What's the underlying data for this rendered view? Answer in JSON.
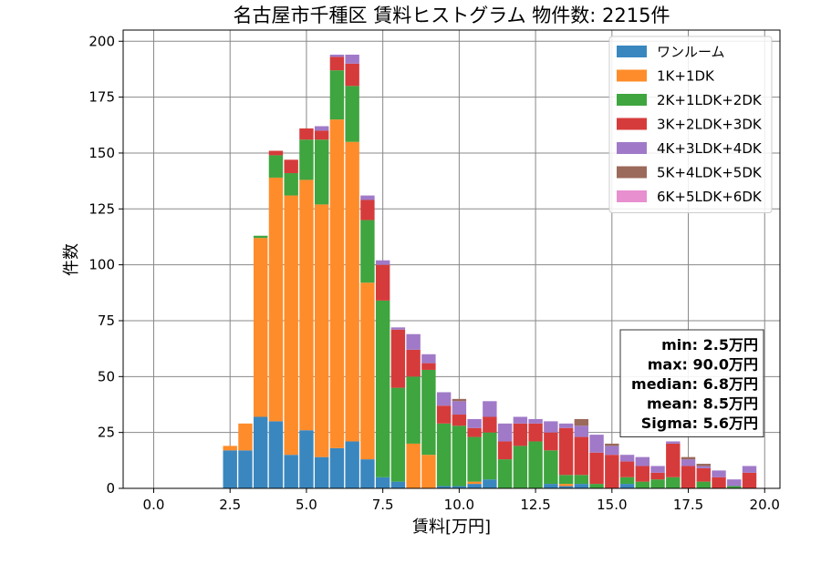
{
  "chart_data": {
    "type": "bar",
    "stacked": true,
    "title": "名古屋市千種区 賃料ヒストグラム 物件数: 2215件",
    "xlabel": "賃料[万円]",
    "ylabel": "件数",
    "xlim": [
      -1.0,
      20.5
    ],
    "ylim": [
      0,
      205
    ],
    "xticks": [
      0,
      2.5,
      5,
      7.5,
      10,
      12.5,
      15,
      17.5,
      20
    ],
    "xtick_labels": [
      "0.0",
      "2.5",
      "5.0",
      "7.5",
      "10.0",
      "12.5",
      "15.0",
      "17.5",
      "20.0"
    ],
    "yticks": [
      0,
      25,
      50,
      75,
      100,
      125,
      150,
      175,
      200
    ],
    "ytick_labels": [
      "0",
      "25",
      "50",
      "75",
      "100",
      "125",
      "150",
      "175",
      "200"
    ],
    "grid": true,
    "legend_position": "top-right",
    "bin_width": 0.5,
    "x": [
      2.5,
      3.0,
      3.5,
      4.0,
      4.5,
      5.0,
      5.5,
      6.0,
      6.5,
      7.0,
      7.5,
      8.0,
      8.5,
      9.0,
      9.5,
      10.0,
      10.5,
      11.0,
      11.5,
      12.0,
      12.5,
      13.0,
      13.5,
      14.0,
      14.5,
      15.0,
      15.5,
      16.0,
      16.5,
      17.0,
      17.5,
      18.0,
      18.5,
      19.0,
      19.5
    ],
    "series": [
      {
        "name": "ワンルーム",
        "color": "#3a87bf",
        "values": [
          17,
          17,
          32,
          30,
          15,
          26,
          14,
          18,
          21,
          13,
          5,
          3,
          0,
          0,
          1,
          1,
          2,
          4,
          0,
          0,
          0,
          2,
          1,
          2,
          0,
          0,
          2,
          0,
          0,
          0,
          0,
          0,
          0,
          0,
          0
        ]
      },
      {
        "name": "1K+1DK",
        "color": "#ff8c2a",
        "values": [
          2,
          12,
          80,
          109,
          116,
          112,
          113,
          147,
          134,
          79,
          0,
          0,
          20,
          15,
          0,
          0,
          1,
          0,
          0,
          0,
          0,
          0,
          1,
          0,
          0,
          0,
          0,
          0,
          0,
          0,
          0,
          0,
          0,
          0,
          0
        ]
      },
      {
        "name": "2K+1LDK+2DK",
        "color": "#3fa53f",
        "values": [
          0,
          0,
          1,
          10,
          10,
          18,
          29,
          22,
          25,
          28,
          79,
          42,
          30,
          38,
          28,
          27,
          20,
          21,
          13,
          19,
          21,
          15,
          4,
          4,
          2,
          0,
          3,
          3,
          4,
          5,
          0,
          3,
          0,
          1,
          0
        ]
      },
      {
        "name": "3K+2LDK+3DK",
        "color": "#d63b3b",
        "values": [
          0,
          0,
          0,
          2,
          6,
          5,
          4,
          6,
          10,
          9,
          16,
          26,
          12,
          3,
          8,
          5,
          4,
          7,
          8,
          10,
          8,
          8,
          21,
          17,
          14,
          15,
          7,
          7,
          3,
          15,
          10,
          6,
          5,
          0,
          7
        ]
      },
      {
        "name": "4K+3LDK+4DK",
        "color": "#a07ac8",
        "values": [
          0,
          0,
          0,
          0,
          0,
          0,
          2,
          1,
          4,
          2,
          2,
          1,
          7,
          4,
          6,
          6,
          4,
          7,
          8,
          3,
          2,
          5,
          2,
          5,
          8,
          4,
          3,
          4,
          3,
          1,
          3,
          1,
          3,
          3,
          3
        ]
      },
      {
        "name": "5K+4LDK+5DK",
        "color": "#9b6a5a",
        "values": [
          0,
          0,
          0,
          0,
          0,
          0,
          0,
          0,
          0,
          0,
          0,
          0,
          0,
          0,
          0,
          1,
          0,
          0,
          0,
          0,
          0,
          0,
          0,
          3,
          0,
          1,
          0,
          0,
          0,
          0,
          1,
          1,
          0,
          0,
          0
        ]
      },
      {
        "name": "6K+5LDK+6DK",
        "color": "#e88fcf",
        "values": [
          0,
          0,
          0,
          0,
          0,
          0,
          0,
          0,
          0,
          0,
          0,
          0,
          0,
          0,
          0,
          0,
          0,
          0,
          0,
          0,
          0,
          0,
          0,
          0,
          0,
          0,
          0,
          0,
          0,
          0,
          0,
          0,
          0,
          0,
          0
        ]
      }
    ],
    "annotation": {
      "lines": [
        "min: 2.5万円",
        "max: 90.0万円",
        "median: 6.8万円",
        "mean: 8.5万円",
        "Sigma: 5.6万円"
      ],
      "position": "right"
    }
  }
}
